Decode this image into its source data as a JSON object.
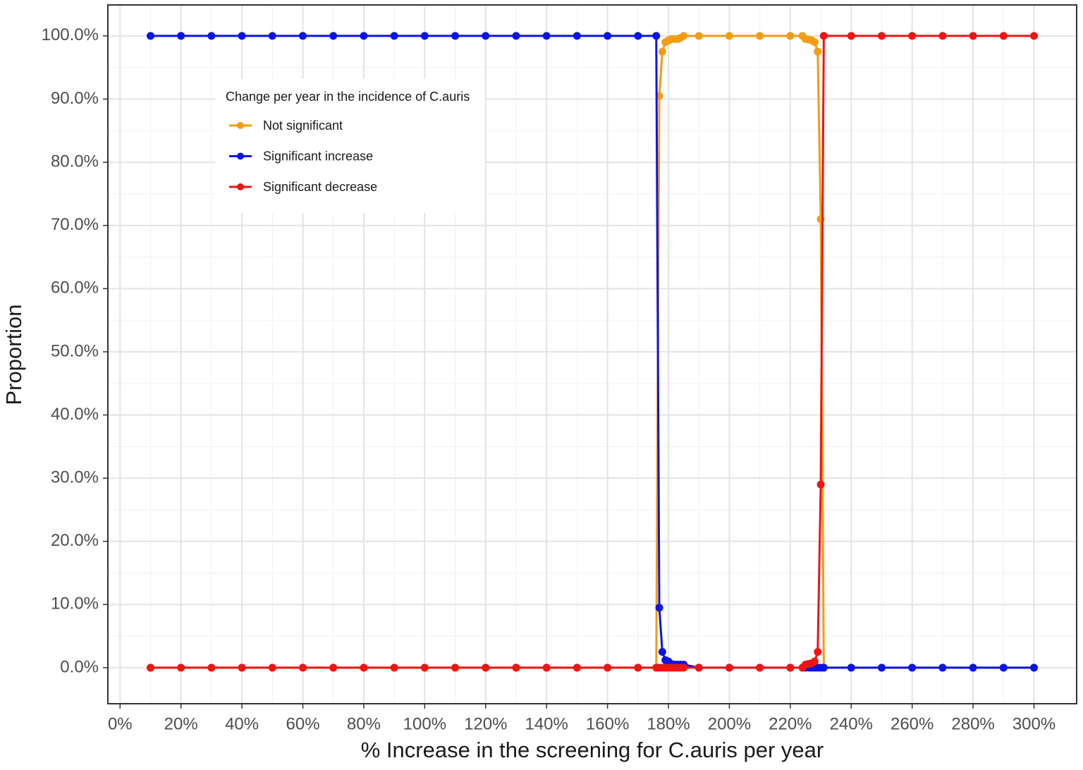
{
  "chart_data": {
    "type": "line",
    "x_label": "% Increase in the screening for C.auris per year",
    "y_label": "Proportion",
    "legend_title": "Change per year in the incidence of C.auris",
    "legend": "top-left",
    "grid": true,
    "xlim": [
      -4,
      314
    ],
    "ylim": [
      -5.7,
      104.9
    ],
    "xticks": [
      {
        "value": 0,
        "label": "0%"
      },
      {
        "value": 20,
        "label": "20%"
      },
      {
        "value": 40,
        "label": "40%"
      },
      {
        "value": 60,
        "label": "60%"
      },
      {
        "value": 80,
        "label": "80%"
      },
      {
        "value": 100,
        "label": "100%"
      },
      {
        "value": 120,
        "label": "120%"
      },
      {
        "value": 140,
        "label": "140%"
      },
      {
        "value": 160,
        "label": "160%"
      },
      {
        "value": 180,
        "label": "180%"
      },
      {
        "value": 200,
        "label": "200%"
      },
      {
        "value": 220,
        "label": "220%"
      },
      {
        "value": 240,
        "label": "240%"
      },
      {
        "value": 260,
        "label": "260%"
      },
      {
        "value": 280,
        "label": "280%"
      },
      {
        "value": 300,
        "label": "300%"
      }
    ],
    "yticks": [
      {
        "value": 0,
        "label": "0.0%"
      },
      {
        "value": 10,
        "label": "10.0%"
      },
      {
        "value": 20,
        "label": "20.0%"
      },
      {
        "value": 30,
        "label": "30.0%"
      },
      {
        "value": 40,
        "label": "40.0%"
      },
      {
        "value": 50,
        "label": "50.0%"
      },
      {
        "value": 60,
        "label": "60.0%"
      },
      {
        "value": 70,
        "label": "70.0%"
      },
      {
        "value": 80,
        "label": "80.0%"
      },
      {
        "value": 90,
        "label": "90.0%"
      },
      {
        "value": 100,
        "label": "100.0%"
      }
    ],
    "x": [
      10,
      20,
      30,
      40,
      50,
      60,
      70,
      80,
      90,
      100,
      110,
      120,
      130,
      140,
      150,
      160,
      170,
      176,
      177,
      178,
      179,
      180,
      181,
      182,
      183,
      184,
      185,
      190,
      200,
      210,
      220,
      224,
      225,
      226,
      227,
      228,
      229,
      230,
      231,
      240,
      250,
      260,
      270,
      280,
      290,
      300
    ],
    "series": [
      {
        "name": "Not significant",
        "color": "#f39c12",
        "values": [
          0,
          0,
          0,
          0,
          0,
          0,
          0,
          0,
          0,
          0,
          0,
          0,
          0,
          0,
          0,
          0,
          0,
          0,
          90.5,
          97.5,
          99,
          99.3,
          99.5,
          99.5,
          99.5,
          99.7,
          100,
          100,
          100,
          100,
          100,
          100,
          99.5,
          99.4,
          99.3,
          99,
          97.5,
          71,
          0,
          0,
          0,
          0,
          0,
          0,
          0,
          0
        ]
      },
      {
        "name": "Significant increase",
        "color": "#0a14e6",
        "values": [
          100,
          100,
          100,
          100,
          100,
          100,
          100,
          100,
          100,
          100,
          100,
          100,
          100,
          100,
          100,
          100,
          100,
          100,
          9.5,
          2.5,
          1.2,
          1,
          0.6,
          0.5,
          0.5,
          0.5,
          0.5,
          0,
          0,
          0,
          0,
          0,
          0,
          0,
          0,
          0,
          0,
          0,
          0,
          0,
          0,
          0,
          0,
          0,
          0,
          0
        ]
      },
      {
        "name": "Significant decrease",
        "color": "#f01414",
        "values": [
          0,
          0,
          0,
          0,
          0,
          0,
          0,
          0,
          0,
          0,
          0,
          0,
          0,
          0,
          0,
          0,
          0,
          0,
          0,
          0,
          0,
          0,
          0,
          0,
          0,
          0,
          0,
          0,
          0,
          0,
          0,
          0,
          0.5,
          0.6,
          0.7,
          1,
          2.5,
          29,
          100,
          100,
          100,
          100,
          100,
          100,
          100,
          100
        ]
      }
    ]
  }
}
